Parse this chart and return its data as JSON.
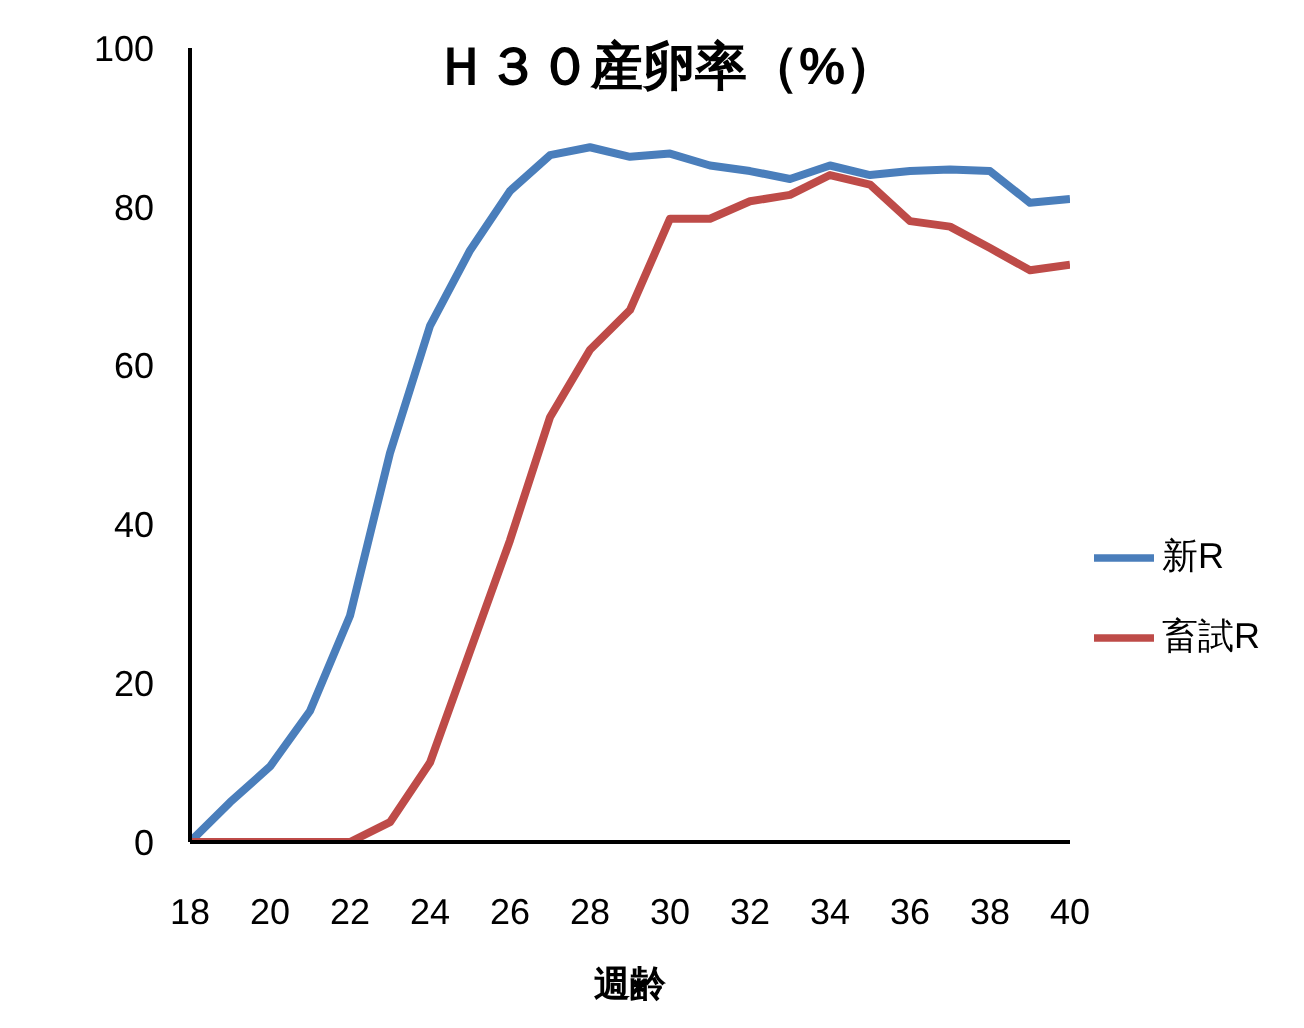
{
  "chart_data": {
    "type": "line",
    "title": "Ｈ３０産卵率（%）",
    "xlabel": "週齢",
    "x": [
      18,
      19,
      20,
      21,
      22,
      23,
      24,
      25,
      26,
      27,
      28,
      29,
      30,
      31,
      32,
      33,
      34,
      35,
      36,
      37,
      38,
      39,
      40
    ],
    "series": [
      {
        "name": "新R",
        "color": "#4a7ebb",
        "values": [
          0,
          5,
          9.5,
          16.5,
          28.5,
          49,
          65,
          74.5,
          82,
          86.5,
          87.5,
          86.3,
          86.7,
          85.2,
          84.5,
          83.5,
          85.2,
          84,
          84.5,
          84.7,
          84.5,
          80.5,
          81
        ]
      },
      {
        "name": "畜試R",
        "color": "#be4b48",
        "values": [
          0,
          0,
          0,
          0,
          0,
          2.5,
          10,
          24,
          38,
          53.5,
          62,
          67,
          78.5,
          78.5,
          80.7,
          81.5,
          84,
          82.8,
          78.2,
          77.5,
          74.8,
          72,
          72.7
        ]
      }
    ],
    "xlim": [
      18,
      40
    ],
    "xticks": [
      18,
      20,
      22,
      24,
      26,
      28,
      30,
      32,
      34,
      36,
      38,
      40
    ],
    "ylim": [
      0,
      100
    ],
    "yticks": [
      0,
      20,
      40,
      60,
      80,
      100
    ],
    "grid": false,
    "legend": "right",
    "marker": "none",
    "line_style": "solid"
  }
}
